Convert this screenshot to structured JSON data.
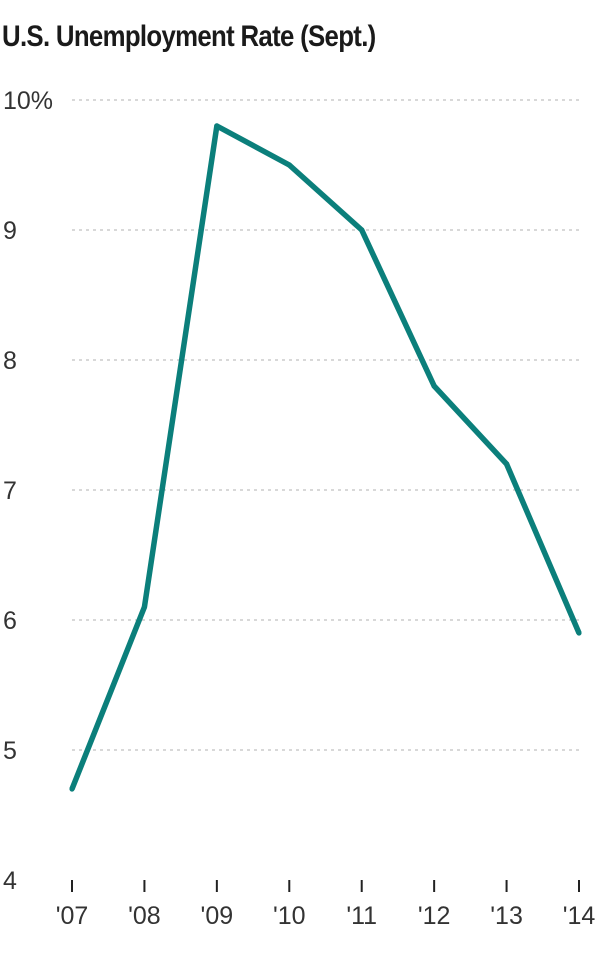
{
  "chart_data": {
    "type": "line",
    "title": "U.S. Unemployment Rate (Sept.)",
    "x": [
      "'07",
      "'08",
      "'09",
      "'10",
      "'11",
      "'12",
      "'13",
      "'14"
    ],
    "series": [
      {
        "values": [
          4.7,
          6.1,
          9.8,
          9.5,
          9.0,
          7.8,
          7.2,
          5.9
        ]
      }
    ],
    "yticks": [
      4,
      5,
      6,
      7,
      8,
      9,
      10
    ],
    "ytick_labels": [
      "4",
      "5",
      "6",
      "7",
      "8",
      "9",
      "10%"
    ],
    "ylim": [
      4,
      10
    ],
    "grid": true,
    "colors": {
      "line": "#0b7f7b",
      "grid": "#cccccc",
      "axis": "#222222"
    }
  }
}
